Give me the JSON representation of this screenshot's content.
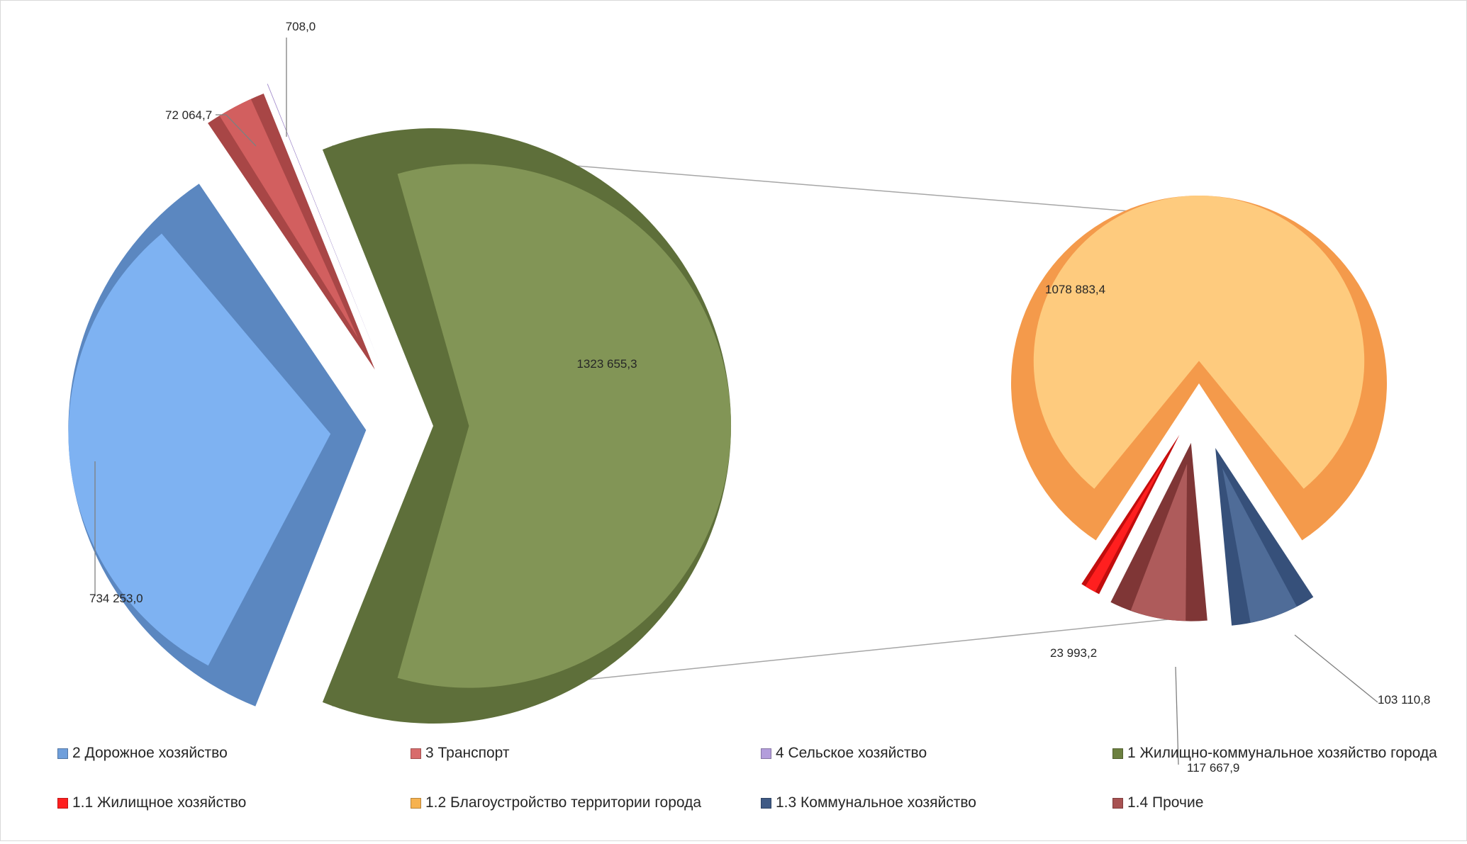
{
  "chart_data": {
    "type": "pie",
    "subtype": "pie-of-pie",
    "main_pie": {
      "slices": [
        {
          "name": "2 Дорожное хозяйство",
          "value": 734253.0,
          "label": "734 253,0",
          "color": "#7eb2f2",
          "dark": "#5b87c0"
        },
        {
          "name": "3 Транспорт",
          "value": 72064.7,
          "label": "72 064,7",
          "color": "#d25f5f",
          "dark": "#a84646"
        },
        {
          "name": "4 Сельское хозяйство",
          "value": 708.0,
          "label": "708,0",
          "color": "#b39ddb",
          "dark": "#8d74ba"
        },
        {
          "name": "1 Жилищно-коммунальное  хозяйство города",
          "value": 1323655.3,
          "label": "1323 655,3",
          "color": "#829556",
          "dark": "#5e6f3a"
        }
      ]
    },
    "secondary_pie": {
      "slices": [
        {
          "name": "1.1 Жилищное хозяйство",
          "value": 23993.2,
          "label": "23 993,2",
          "color": "#ff1f1f",
          "dark": "#c20d0d"
        },
        {
          "name": "1.2 Благоустройство территории города",
          "value": 1078883.4,
          "label": "1078 883,4",
          "color": "#fecb7e",
          "dark": "#f49a4b"
        },
        {
          "name": "1.3 Коммунальное хозяйство",
          "value": 103110.8,
          "label": "103 110,8",
          "color": "#4f6c98",
          "dark": "#36507a"
        },
        {
          "name": "1.4 Прочие",
          "value": 117667.9,
          "label": "117 667,9",
          "color": "#ae5b5b",
          "dark": "#7f3636"
        }
      ]
    },
    "legend": {
      "placement": "bottom",
      "rows": [
        [
          {
            "label": "2 Дорожное хозяйство",
            "color": "#6f9fdb"
          },
          {
            "label": "3 Транспорт",
            "color": "#d86c6c"
          },
          {
            "label": "4 Сельское хозяйство",
            "color": "#b39ddb"
          },
          {
            "label": "1 Жилищно-коммунальное  хозяйство города",
            "color": "#6c8040"
          }
        ],
        [
          {
            "label": "1.1 Жилищное хозяйство",
            "color": "#ff1f1f"
          },
          {
            "label": "1.2 Благоустройство территории города",
            "color": "#f6b24f"
          },
          {
            "label": "1.3 Коммунальное хозяйство",
            "color": "#3f5a85"
          },
          {
            "label": "1.4 Прочие",
            "color": "#a85252"
          }
        ]
      ]
    }
  }
}
